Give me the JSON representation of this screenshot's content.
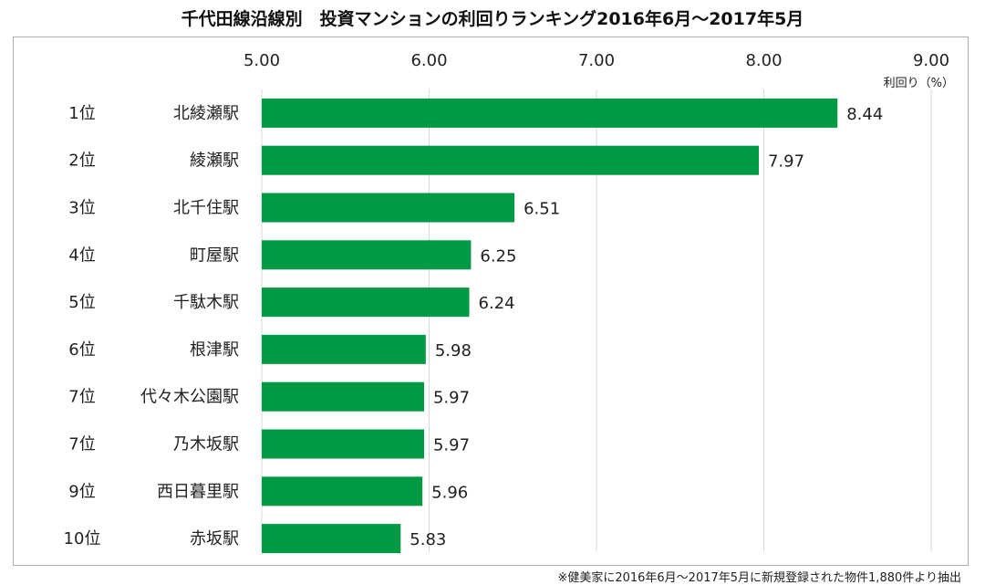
{
  "title": "千代田線沿線別　投資マンションの利回りランキング2016年6月～2017年5月",
  "footnote": "※健美家に2016年6月～2017年5月に新規登録された物件1,880件より抽出",
  "chart_data": {
    "type": "bar",
    "orientation": "horizontal",
    "title": "千代田線沿線別　投資マンションの利回りランキング2016年6月～2017年5月",
    "xlabel": "利回り（%）",
    "xlim": [
      5.0,
      9.0
    ],
    "xticks": [
      "5.00",
      "6.00",
      "7.00",
      "8.00",
      "9.00"
    ],
    "axis_position": "top",
    "grid": true,
    "bar_color": "#009944",
    "ranks": [
      "1位",
      "2位",
      "3位",
      "4位",
      "5位",
      "6位",
      "7位",
      "7位",
      "9位",
      "10位"
    ],
    "categories": [
      "北綾瀬駅",
      "綾瀬駅",
      "北千住駅",
      "町屋駅",
      "千駄木駅",
      "根津駅",
      "代々木公園駅",
      "乃木坂駅",
      "西日暮里駅",
      "赤坂駅"
    ],
    "values": [
      8.44,
      7.97,
      6.51,
      6.25,
      6.24,
      5.98,
      5.97,
      5.97,
      5.96,
      5.83
    ],
    "data_labels": [
      "8.44",
      "7.97",
      "6.51",
      "6.25",
      "6.24",
      "5.98",
      "5.97",
      "5.97",
      "5.96",
      "5.83"
    ]
  }
}
